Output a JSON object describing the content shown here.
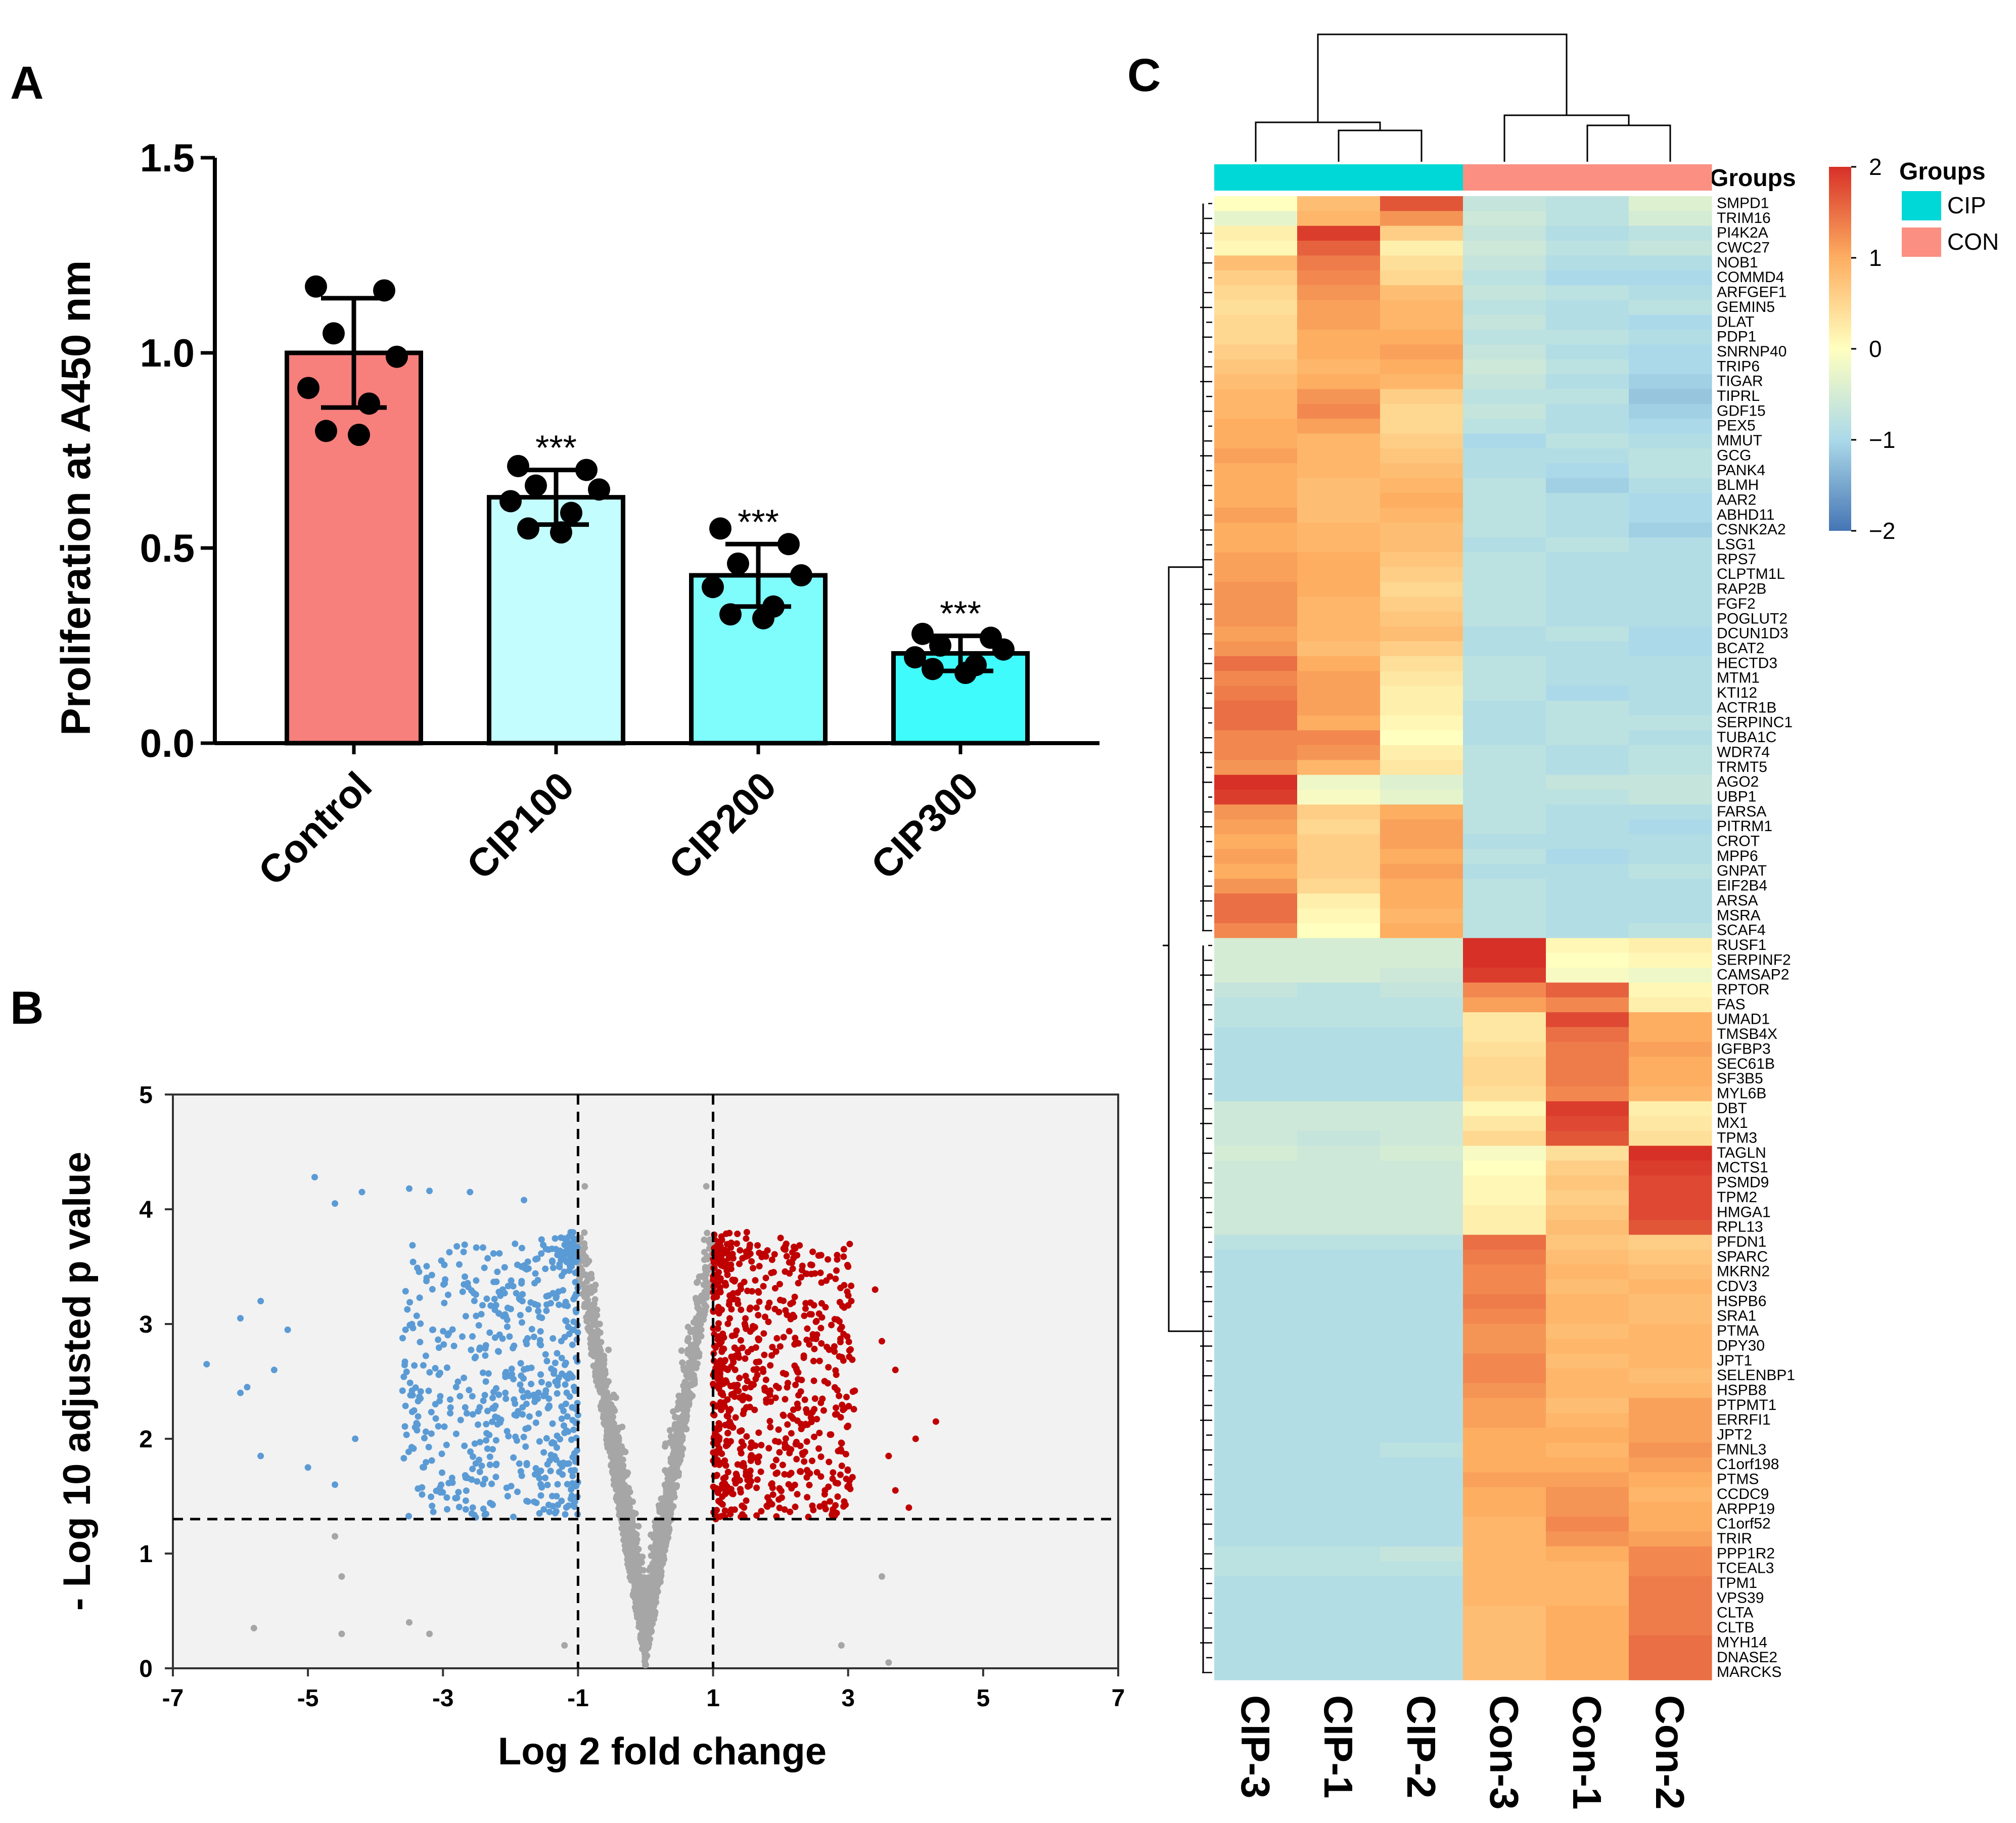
{
  "panels": {
    "a": "A",
    "b": "B",
    "c": "C"
  },
  "chart_data": [
    {
      "type": "bar",
      "panel": "A",
      "ylabel": "Proliferation at A450 nm",
      "ylim": [
        0,
        1.5
      ],
      "yticks": [
        0,
        0.5,
        1,
        1.5
      ],
      "ytick_labels": [
        "0.0",
        "0.5",
        "1.0",
        "1.5"
      ],
      "categories": [
        "Control",
        "CIP100",
        "CIP200",
        "CIP300"
      ],
      "values": [
        1.0,
        0.63,
        0.43,
        0.23
      ],
      "sd": [
        0.14,
        0.07,
        0.08,
        0.045
      ],
      "significance": [
        "",
        "***",
        "***",
        "***"
      ],
      "colors": [
        "#f77f7c",
        "#c4fdfd",
        "#7ffcfc",
        "#3ffbfb"
      ],
      "points": [
        [
          1.17,
          1.16,
          1.05,
          0.99,
          0.91,
          0.87,
          0.8,
          0.79
        ],
        [
          0.71,
          0.7,
          0.66,
          0.65,
          0.62,
          0.59,
          0.55,
          0.54
        ],
        [
          0.55,
          0.51,
          0.46,
          0.43,
          0.4,
          0.35,
          0.33,
          0.32
        ],
        [
          0.28,
          0.27,
          0.25,
          0.24,
          0.22,
          0.2,
          0.19,
          0.18
        ]
      ]
    },
    {
      "type": "scatter",
      "panel": "B",
      "xlabel": "Log 2 fold change",
      "ylabel": "- Log 10 adjusted p value",
      "xlim": [
        -7,
        7
      ],
      "ylim": [
        0,
        5
      ],
      "xticks": [
        -7,
        -5,
        -3,
        -1,
        1,
        3,
        5,
        7
      ],
      "yticks": [
        0,
        1,
        2,
        3,
        4,
        5
      ],
      "thresholds": {
        "fc": [
          -1,
          1
        ],
        "p": 1.3
      },
      "series": [
        {
          "name": "down",
          "color": "#5b9bd5"
        },
        {
          "name": "ns",
          "color": "#a6a6a6"
        },
        {
          "name": "up",
          "color": "#c00000"
        }
      ],
      "outliers": [
        [
          -4.9,
          4.28
        ],
        [
          -4.6,
          4.05
        ],
        [
          -4.2,
          4.15
        ],
        [
          -3.5,
          4.18
        ],
        [
          -3.2,
          4.16
        ],
        [
          -2.6,
          4.15
        ],
        [
          -1.8,
          4.08
        ],
        [
          -5.7,
          3.2
        ],
        [
          -6.0,
          3.05
        ],
        [
          -5.3,
          2.95
        ],
        [
          -6.5,
          2.65
        ],
        [
          -5.9,
          2.45
        ],
        [
          -6.0,
          2.4
        ],
        [
          -5.5,
          2.6
        ],
        [
          -5.7,
          1.85
        ],
        [
          -5.0,
          1.75
        ],
        [
          -4.6,
          1.6
        ],
        [
          -4.3,
          2.0
        ],
        [
          -5.8,
          0.35
        ],
        [
          -4.5,
          0.3
        ],
        [
          -4.5,
          0.8
        ],
        [
          -4.6,
          1.15
        ],
        [
          -3.5,
          0.4
        ],
        [
          -3.2,
          0.3
        ],
        [
          4.3,
          2.15
        ],
        [
          4.0,
          2.0
        ],
        [
          3.6,
          1.85
        ],
        [
          3.7,
          1.55
        ],
        [
          3.9,
          1.4
        ],
        [
          3.4,
          3.3
        ],
        [
          3.0,
          3.5
        ],
        [
          2.6,
          3.6
        ],
        [
          3.5,
          2.85
        ],
        [
          3.7,
          2.6
        ],
        [
          3.5,
          0.8
        ],
        [
          2.9,
          0.2
        ],
        [
          3.6,
          0.05
        ],
        [
          -1.2,
          0.2
        ],
        [
          -0.9,
          4.2
        ],
        [
          0.9,
          4.2
        ],
        [
          1.5,
          3.8
        ],
        [
          2.0,
          3.75
        ]
      ]
    },
    {
      "type": "heatmap",
      "panel": "C",
      "columns": [
        "CIP-3",
        "CIP-1",
        "CIP-2",
        "Con-3",
        "Con-1",
        "Con-2"
      ],
      "column_groups": [
        "CIP",
        "CIP",
        "CIP",
        "CON",
        "CON",
        "CON"
      ],
      "groups_label": "Groups",
      "legend": {
        "title": "Groups",
        "items": [
          {
            "label": "CIP",
            "color": "#00d7d7"
          },
          {
            "label": "CON",
            "color": "#fa8f82"
          }
        ]
      },
      "colorbar": {
        "min": -2,
        "max": 2,
        "ticks": [
          "2",
          "1",
          "0",
          "−1",
          "−2"
        ]
      },
      "rows": [
        "SMPD1",
        "TRIM16",
        "PI4K2A",
        "CWC27",
        "NOB1",
        "COMMD4",
        "ARFGEF1",
        "GEMIN5",
        "DLAT",
        "PDP1",
        "SNRNP40",
        "TRIP6",
        "TIGAR",
        "TIPRL",
        "GDF15",
        "PEX5",
        "MMUT",
        "GCG",
        "PANK4",
        "BLMH",
        "AAR2",
        "ABHD11",
        "CSNK2A2",
        "LSG1",
        "RPS7",
        "CLPTM1L",
        "RAP2B",
        "FGF2",
        "POGLUT2",
        "DCUN1D3",
        "BCAT2",
        "HECTD3",
        "MTM1",
        "KTI12",
        "ACTR1B",
        "SERPINC1",
        "TUBA1C",
        "WDR74",
        "TRMT5",
        "AGO2",
        "UBP1",
        "FARSA",
        "PITRM1",
        "CROT",
        "MPP6",
        "GNPAT",
        "EIF2B4",
        "ARSA",
        "MSRA",
        "SCAF4",
        "RUSF1",
        "SERPINF2",
        "CAMSAP2",
        "RPTOR",
        "FAS",
        "UMAD1",
        "TMSB4X",
        "IGFBP3",
        "SEC61B",
        "SF3B5",
        "MYL6B",
        "DBT",
        "MX1",
        "TPM3",
        "TAGLN",
        "MCTS1",
        "PSMD9",
        "TPM2",
        "HMGA1",
        "RPL13",
        "PFDN1",
        "SPARC",
        "MKRN2",
        "CDV3",
        "HSPB6",
        "SRA1",
        "PTMA",
        "DPY30",
        "JPT1",
        "SELENBP1",
        "HSPB8",
        "PTPMT1",
        "ERRFI1",
        "JPT2",
        "FMNL3",
        "C1orf198",
        "PTMS",
        "CCDC9",
        "ARPP19",
        "C1orf52",
        "TRIR",
        "PPP1R2",
        "TCEAL3",
        "TPM1",
        "VPS39",
        "CLTA",
        "CLTB",
        "MYH14",
        "DNASE2",
        "MARCKS"
      ],
      "values": [
        [
          0.0,
          0.8,
          1.7,
          -0.7,
          -0.8,
          -0.4
        ],
        [
          -0.3,
          0.9,
          1.2,
          -0.6,
          -0.8,
          -0.5
        ],
        [
          0.2,
          1.9,
          0.6,
          -0.7,
          -0.9,
          -0.8
        ],
        [
          0.1,
          1.6,
          0.2,
          -0.6,
          -0.8,
          -0.7
        ],
        [
          0.8,
          1.4,
          0.4,
          -0.7,
          -0.9,
          -0.9
        ],
        [
          0.6,
          1.3,
          0.5,
          -0.8,
          -1.0,
          -1.0
        ],
        [
          0.5,
          1.2,
          0.8,
          -0.7,
          -0.8,
          -0.9
        ],
        [
          0.4,
          1.1,
          0.9,
          -0.8,
          -0.9,
          -0.8
        ],
        [
          0.5,
          1.1,
          0.9,
          -0.7,
          -0.9,
          -1.0
        ],
        [
          0.5,
          1.0,
          1.0,
          -0.8,
          -0.8,
          -0.9
        ],
        [
          0.6,
          1.0,
          1.1,
          -0.7,
          -0.9,
          -1.0
        ],
        [
          0.7,
          0.9,
          1.0,
          -0.6,
          -0.8,
          -1.0
        ],
        [
          0.8,
          1.0,
          0.9,
          -0.7,
          -0.9,
          -1.1
        ],
        [
          0.9,
          1.2,
          0.6,
          -0.8,
          -0.8,
          -1.2
        ],
        [
          0.9,
          1.3,
          0.5,
          -0.7,
          -0.9,
          -1.1
        ],
        [
          1.0,
          1.1,
          0.5,
          -0.8,
          -0.9,
          -1.0
        ],
        [
          1.0,
          0.9,
          0.6,
          -1.0,
          -0.8,
          -0.9
        ],
        [
          1.1,
          0.9,
          0.7,
          -0.9,
          -0.9,
          -0.8
        ],
        [
          1.0,
          0.9,
          0.8,
          -0.9,
          -1.0,
          -0.8
        ],
        [
          1.0,
          0.8,
          0.9,
          -0.8,
          -1.1,
          -0.9
        ],
        [
          1.0,
          0.8,
          1.0,
          -0.8,
          -0.9,
          -1.0
        ],
        [
          1.1,
          0.8,
          0.9,
          -0.8,
          -0.9,
          -1.0
        ],
        [
          1.0,
          0.9,
          0.8,
          -0.8,
          -0.9,
          -1.1
        ],
        [
          1.0,
          0.9,
          0.8,
          -0.9,
          -0.8,
          -0.9
        ],
        [
          1.1,
          1.0,
          0.7,
          -0.8,
          -0.9,
          -0.9
        ],
        [
          1.1,
          1.0,
          0.6,
          -0.8,
          -0.9,
          -0.9
        ],
        [
          1.2,
          1.0,
          0.5,
          -0.8,
          -0.9,
          -0.9
        ],
        [
          1.2,
          0.9,
          0.6,
          -0.8,
          -0.9,
          -0.9
        ],
        [
          1.2,
          0.9,
          0.7,
          -0.8,
          -0.9,
          -0.9
        ],
        [
          1.1,
          0.9,
          0.8,
          -0.9,
          -0.8,
          -1.0
        ],
        [
          1.2,
          0.8,
          0.6,
          -0.9,
          -0.9,
          -1.0
        ],
        [
          1.5,
          1.0,
          0.4,
          -0.8,
          -0.9,
          -0.9
        ],
        [
          1.3,
          1.1,
          0.3,
          -0.8,
          -0.9,
          -0.9
        ],
        [
          1.4,
          1.1,
          0.2,
          -0.8,
          -1.0,
          -0.9
        ],
        [
          1.5,
          1.1,
          0.2,
          -0.9,
          -0.8,
          -0.9
        ],
        [
          1.5,
          1.0,
          0.1,
          -0.9,
          -0.8,
          -0.8
        ],
        [
          1.3,
          1.3,
          0.0,
          -0.9,
          -0.8,
          -0.9
        ],
        [
          1.3,
          1.2,
          0.2,
          -0.8,
          -0.9,
          -0.8
        ],
        [
          1.2,
          0.9,
          0.3,
          -0.8,
          -0.9,
          -0.8
        ],
        [
          2.0,
          -0.2,
          -0.4,
          -0.8,
          -0.7,
          -0.7
        ],
        [
          1.9,
          -0.1,
          -0.3,
          -0.8,
          -0.8,
          -0.7
        ],
        [
          1.2,
          0.6,
          1.0,
          -0.8,
          -0.9,
          -0.9
        ],
        [
          1.1,
          0.5,
          1.1,
          -0.8,
          -0.9,
          -1.0
        ],
        [
          1.0,
          0.6,
          1.1,
          -0.9,
          -0.9,
          -0.9
        ],
        [
          1.1,
          0.6,
          1.0,
          -0.8,
          -1.0,
          -0.9
        ],
        [
          1.0,
          0.6,
          1.1,
          -0.9,
          -0.9,
          -0.8
        ],
        [
          1.2,
          0.5,
          1.0,
          -0.8,
          -0.9,
          -0.9
        ],
        [
          1.5,
          0.2,
          1.0,
          -0.8,
          -0.9,
          -0.9
        ],
        [
          1.5,
          0.1,
          0.9,
          -0.8,
          -0.9,
          -0.9
        ],
        [
          1.3,
          0.0,
          1.0,
          -0.8,
          -0.9,
          -0.8
        ],
        [
          -0.5,
          -0.5,
          -0.5,
          2.0,
          0.1,
          0.2
        ],
        [
          -0.5,
          -0.5,
          -0.5,
          2.0,
          0.0,
          0.1
        ],
        [
          -0.5,
          -0.5,
          -0.6,
          1.9,
          -0.1,
          -0.2
        ],
        [
          -0.7,
          -0.8,
          -0.7,
          1.3,
          1.6,
          0.1
        ],
        [
          -0.8,
          -0.8,
          -0.8,
          1.1,
          1.3,
          0.2
        ],
        [
          -0.8,
          -0.8,
          -0.8,
          0.3,
          1.8,
          1.0
        ],
        [
          -0.9,
          -0.9,
          -0.9,
          0.3,
          1.5,
          1.0
        ],
        [
          -0.9,
          -0.9,
          -0.9,
          0.4,
          1.4,
          1.1
        ],
        [
          -0.9,
          -0.9,
          -0.9,
          0.5,
          1.4,
          1.0
        ],
        [
          -0.9,
          -0.9,
          -0.9,
          0.5,
          1.4,
          1.0
        ],
        [
          -0.9,
          -0.9,
          -0.9,
          0.4,
          1.3,
          0.9
        ],
        [
          -0.6,
          -0.6,
          -0.6,
          0.1,
          1.9,
          0.2
        ],
        [
          -0.6,
          -0.6,
          -0.6,
          0.3,
          1.8,
          0.3
        ],
        [
          -0.6,
          -0.7,
          -0.6,
          0.5,
          1.7,
          0.4
        ],
        [
          -0.5,
          -0.6,
          -0.5,
          -0.1,
          0.4,
          2.0
        ],
        [
          -0.6,
          -0.6,
          -0.6,
          0.0,
          0.6,
          1.9
        ],
        [
          -0.6,
          -0.6,
          -0.6,
          0.1,
          0.7,
          1.8
        ],
        [
          -0.6,
          -0.6,
          -0.6,
          0.1,
          0.6,
          1.8
        ],
        [
          -0.6,
          -0.6,
          -0.6,
          0.2,
          0.7,
          1.8
        ],
        [
          -0.6,
          -0.6,
          -0.6,
          0.2,
          0.8,
          1.7
        ],
        [
          -0.8,
          -0.8,
          -0.8,
          1.5,
          0.7,
          0.6
        ],
        [
          -0.9,
          -0.9,
          -0.9,
          1.4,
          0.8,
          0.7
        ],
        [
          -0.9,
          -0.9,
          -0.9,
          1.3,
          0.9,
          0.8
        ],
        [
          -0.9,
          -0.9,
          -0.9,
          1.3,
          0.8,
          0.9
        ],
        [
          -0.9,
          -0.9,
          -0.9,
          1.4,
          0.9,
          0.8
        ],
        [
          -0.9,
          -0.9,
          -0.9,
          1.3,
          0.9,
          0.8
        ],
        [
          -0.9,
          -0.9,
          -0.9,
          1.2,
          0.8,
          0.9
        ],
        [
          -0.9,
          -0.9,
          -0.9,
          1.2,
          0.9,
          0.9
        ],
        [
          -0.9,
          -0.9,
          -0.9,
          1.3,
          0.8,
          0.9
        ],
        [
          -0.9,
          -0.9,
          -0.9,
          1.3,
          0.9,
          0.8
        ],
        [
          -0.9,
          -0.9,
          -0.9,
          1.2,
          0.9,
          0.9
        ],
        [
          -0.9,
          -0.9,
          -0.9,
          1.1,
          0.8,
          1.1
        ],
        [
          -0.9,
          -0.9,
          -0.9,
          1.1,
          0.9,
          1.1
        ],
        [
          -0.9,
          -0.9,
          -0.9,
          1.0,
          1.0,
          1.1
        ],
        [
          -0.9,
          -0.9,
          -0.8,
          1.0,
          0.9,
          1.2
        ],
        [
          -0.9,
          -0.9,
          -0.9,
          1.0,
          1.0,
          1.1
        ],
        [
          -0.9,
          -0.9,
          -0.9,
          1.1,
          1.1,
          1.0
        ],
        [
          -0.9,
          -0.9,
          -0.9,
          1.0,
          1.2,
          0.9
        ],
        [
          -0.9,
          -0.9,
          -0.9,
          1.0,
          1.2,
          1.0
        ],
        [
          -0.9,
          -0.9,
          -0.9,
          0.9,
          1.3,
          1.0
        ],
        [
          -0.9,
          -0.9,
          -0.9,
          0.9,
          1.2,
          1.1
        ],
        [
          -0.8,
          -0.8,
          -0.7,
          0.9,
          1.0,
          1.3
        ],
        [
          -0.8,
          -0.8,
          -0.8,
          0.9,
          0.9,
          1.3
        ],
        [
          -0.9,
          -0.9,
          -0.9,
          0.9,
          0.9,
          1.4
        ],
        [
          -0.9,
          -0.9,
          -0.9,
          0.9,
          0.9,
          1.4
        ],
        [
          -0.9,
          -0.9,
          -0.9,
          0.8,
          1.0,
          1.4
        ],
        [
          -0.9,
          -0.9,
          -0.9,
          0.8,
          1.0,
          1.4
        ],
        [
          -0.9,
          -0.9,
          -0.9,
          0.8,
          1.0,
          1.5
        ],
        [
          -0.9,
          -0.9,
          -0.9,
          0.8,
          1.0,
          1.5
        ],
        [
          -0.9,
          -0.9,
          -0.9,
          0.8,
          1.0,
          1.5
        ]
      ]
    }
  ]
}
